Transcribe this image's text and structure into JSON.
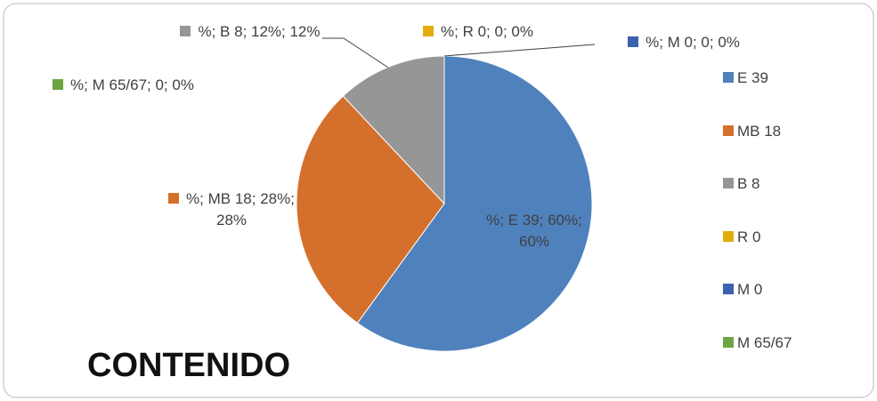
{
  "chart_data": {
    "type": "pie",
    "title": "CONTENIDO",
    "series_name": "%",
    "categories": [
      "E 39",
      "MB 18",
      "B 8",
      "R 0",
      "M 0",
      "M 65/67"
    ],
    "values": [
      60,
      28,
      12,
      0,
      0,
      0
    ],
    "value_labels": [
      "%; E 39; 60%; 60%",
      "%; MB 18; 28%; 28%",
      "%; B 8; 12%; 12%",
      "%; R 0; 0; 0%",
      "%; M 0; 0; 0%",
      "%; M 65/67; 0; 0%"
    ],
    "colors": [
      "#4f81bd",
      "#d4702c",
      "#969696",
      "#e0ad0c",
      "#3b62ae",
      "#6da543"
    ],
    "legend": "right"
  }
}
